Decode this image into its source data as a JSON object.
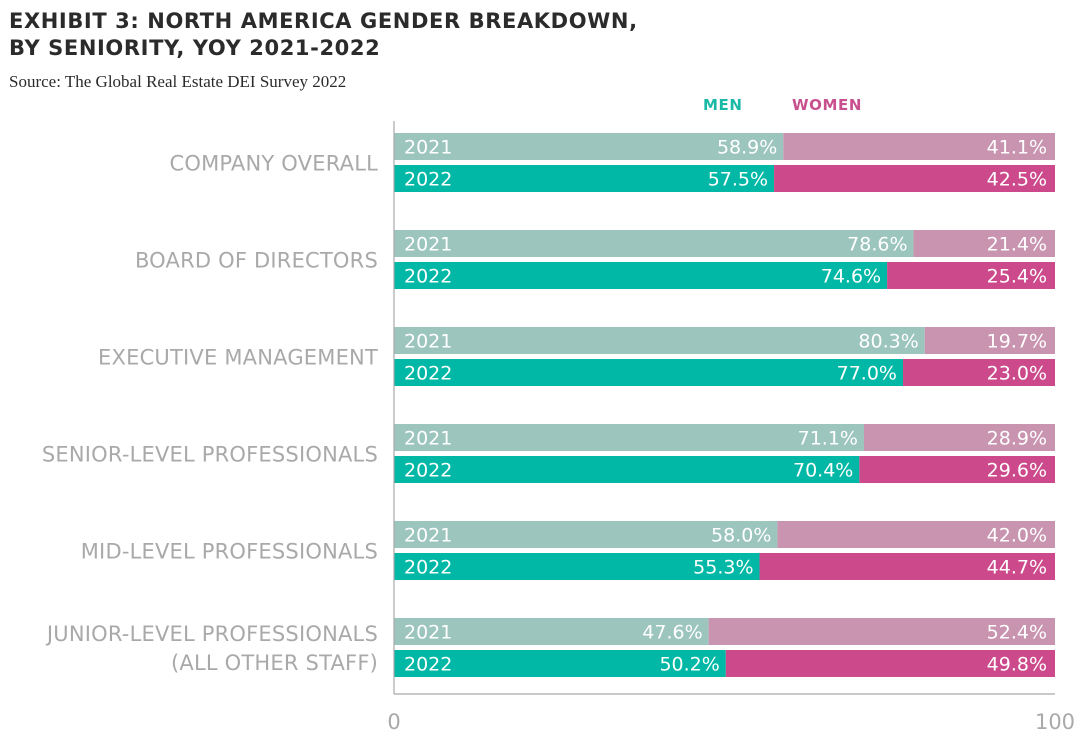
{
  "title_line1": "EXHIBIT 3: NORTH AMERICA GENDER BREAKDOWN,",
  "title_line2": "BY SENIORITY, YOY 2021-2022",
  "source": "Source: The Global Real Estate DEI Survey 2022",
  "colors": {
    "men_2021": "#9cc5be",
    "men_2022": "#00b8a5",
    "women_2021": "#c994b0",
    "women_2022": "#cc4a8b",
    "legend_men": "#19b9a6",
    "legend_women": "#c8508e",
    "label_gray": "#a9a9a9"
  },
  "chart_data": {
    "type": "bar",
    "orientation": "horizontal",
    "stacked": true,
    "xlim": [
      0,
      100
    ],
    "x_ticks": [
      "0",
      "100"
    ],
    "legend": [
      {
        "name": "MEN",
        "color": "#19b9a6"
      },
      {
        "name": "WOMEN",
        "color": "#c8508e"
      }
    ],
    "legend_position": "top",
    "grid": false,
    "categories": [
      {
        "lines": [
          "COMPANY OVERALL"
        ],
        "years": [
          {
            "year": "2021",
            "men": 58.9,
            "women": 41.1,
            "men_label": "58.9%",
            "women_label": "41.1%"
          },
          {
            "year": "2022",
            "men": 57.5,
            "women": 42.5,
            "men_label": "57.5%",
            "women_label": "42.5%"
          }
        ]
      },
      {
        "lines": [
          "BOARD OF DIRECTORS"
        ],
        "years": [
          {
            "year": "2021",
            "men": 78.6,
            "women": 21.4,
            "men_label": "78.6%",
            "women_label": "21.4%"
          },
          {
            "year": "2022",
            "men": 74.6,
            "women": 25.4,
            "men_label": "74.6%",
            "women_label": "25.4%"
          }
        ]
      },
      {
        "lines": [
          "EXECUTIVE MANAGEMENT"
        ],
        "years": [
          {
            "year": "2021",
            "men": 80.3,
            "women": 19.7,
            "men_label": "80.3%",
            "women_label": "19.7%"
          },
          {
            "year": "2022",
            "men": 77.0,
            "women": 23.0,
            "men_label": "77.0%",
            "women_label": "23.0%"
          }
        ]
      },
      {
        "lines": [
          "SENIOR-LEVEL PROFESSIONALS"
        ],
        "years": [
          {
            "year": "2021",
            "men": 71.1,
            "women": 28.9,
            "men_label": "71.1%",
            "women_label": "28.9%"
          },
          {
            "year": "2022",
            "men": 70.4,
            "women": 29.6,
            "men_label": "70.4%",
            "women_label": "29.6%"
          }
        ]
      },
      {
        "lines": [
          "MID-LEVEL PROFESSIONALS"
        ],
        "years": [
          {
            "year": "2021",
            "men": 58.0,
            "women": 42.0,
            "men_label": "58.0%",
            "women_label": "42.0%"
          },
          {
            "year": "2022",
            "men": 55.3,
            "women": 44.7,
            "men_label": "55.3%",
            "women_label": "44.7%"
          }
        ]
      },
      {
        "lines": [
          "JUNIOR-LEVEL PROFESSIONALS",
          "(ALL OTHER STAFF)"
        ],
        "years": [
          {
            "year": "2021",
            "men": 47.6,
            "women": 52.4,
            "men_label": "47.6%",
            "women_label": "52.4%"
          },
          {
            "year": "2022",
            "men": 50.2,
            "women": 49.8,
            "men_label": "50.2%",
            "women_label": "49.8%"
          }
        ]
      }
    ]
  }
}
